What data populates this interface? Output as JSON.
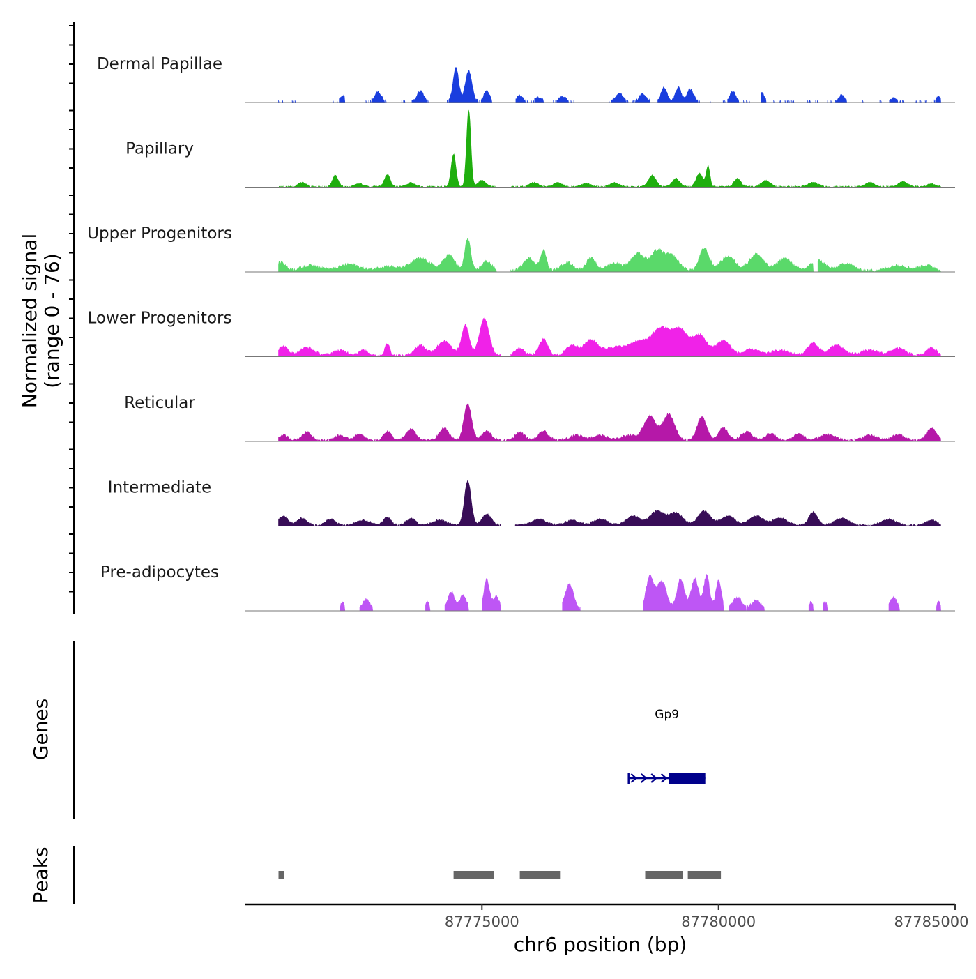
{
  "chart_data": {
    "type": "area",
    "title": "",
    "xlabel": "chr6 position (bp)",
    "ylabel": "Normalized signal",
    "ylabel_range": "(range 0 - 76)",
    "xlim": [
      87770000,
      87785000
    ],
    "ylim": [
      0,
      76
    ],
    "x_ticks": [
      {
        "value": 87775000,
        "label": "87775000"
      },
      {
        "value": 87780000,
        "label": "87780000"
      },
      {
        "value": 87785000,
        "label": "87785000"
      }
    ],
    "data_extent": [
      87770700,
      87784700
    ],
    "series": [
      {
        "name": "Dermal Papillae",
        "color": "#1a3ede",
        "noise": 2.2,
        "gate": 2.0,
        "segments": [
          [
            87770700,
            87771100
          ],
          [
            87771800,
            87772100
          ],
          [
            87772500,
            87773000
          ],
          [
            87773300,
            87773900
          ],
          [
            87774200,
            87775200
          ],
          [
            87775700,
            87776300
          ],
          [
            87776500,
            87777000
          ],
          [
            87777300,
            87777400
          ],
          [
            87777600,
            87778600
          ],
          [
            87778700,
            87779600
          ],
          [
            87779800,
            87780700
          ],
          [
            87780900,
            87781700
          ],
          [
            87781800,
            87782700
          ],
          [
            87782900,
            87783100
          ],
          [
            87783400,
            87784700
          ]
        ],
        "peaks": [
          [
            87771300,
            5,
            70
          ],
          [
            87772100,
            6,
            80
          ],
          [
            87772800,
            9,
            70
          ],
          [
            87773200,
            10,
            60
          ],
          [
            87773700,
            10,
            70
          ],
          [
            87774450,
            33,
            60
          ],
          [
            87774720,
            30,
            70
          ],
          [
            87775100,
            11,
            60
          ],
          [
            87775800,
            6,
            60
          ],
          [
            87776200,
            4,
            70
          ],
          [
            87776700,
            5,
            70
          ],
          [
            87777900,
            8,
            80
          ],
          [
            87778400,
            8,
            70
          ],
          [
            87778850,
            14,
            60
          ],
          [
            87779150,
            14,
            60
          ],
          [
            87779400,
            12,
            70
          ],
          [
            87780300,
            10,
            60
          ],
          [
            87780900,
            9,
            60
          ],
          [
            87782600,
            6,
            60
          ],
          [
            87783700,
            3,
            70
          ],
          [
            87784650,
            5,
            50
          ]
        ]
      },
      {
        "name": "Papillary",
        "color": "#1fae0e",
        "noise": 1.3,
        "gate": 0.5,
        "segments": [
          [
            87770700,
            87775300
          ],
          [
            87775600,
            87784700
          ]
        ],
        "peaks": [
          [
            87771200,
            4,
            80
          ],
          [
            87771900,
            11,
            60
          ],
          [
            87772400,
            3,
            90
          ],
          [
            87773000,
            12,
            60
          ],
          [
            87773500,
            4,
            80
          ],
          [
            87774400,
            32,
            50
          ],
          [
            87774720,
            76,
            45
          ],
          [
            87775000,
            6,
            80
          ],
          [
            87776100,
            4,
            90
          ],
          [
            87776600,
            4,
            90
          ],
          [
            87777200,
            3,
            90
          ],
          [
            87777800,
            4,
            90
          ],
          [
            87778600,
            11,
            80
          ],
          [
            87779100,
            8,
            80
          ],
          [
            87779600,
            13,
            70
          ],
          [
            87779780,
            20,
            40
          ],
          [
            87780400,
            8,
            70
          ],
          [
            87781000,
            6,
            90
          ],
          [
            87782000,
            4,
            100
          ],
          [
            87783200,
            4,
            90
          ],
          [
            87783900,
            5,
            90
          ],
          [
            87784500,
            3,
            80
          ]
        ]
      },
      {
        "name": "Upper Progenitors",
        "color": "#5ad96a",
        "noise": 3.0,
        "gate": 0.5,
        "segments": [
          [
            87770700,
            87775300
          ],
          [
            87775600,
            87782000
          ],
          [
            87782100,
            87784700
          ]
        ],
        "peaks": [
          [
            87770750,
            8,
            100
          ],
          [
            87771400,
            5,
            200
          ],
          [
            87772200,
            6,
            200
          ],
          [
            87773000,
            4,
            200
          ],
          [
            87773700,
            12,
            200
          ],
          [
            87774300,
            15,
            120
          ],
          [
            87774700,
            32,
            60
          ],
          [
            87775100,
            9,
            100
          ],
          [
            87776000,
            12,
            120
          ],
          [
            87776300,
            20,
            60
          ],
          [
            87776800,
            8,
            120
          ],
          [
            87777300,
            12,
            100
          ],
          [
            87777800,
            7,
            150
          ],
          [
            87778300,
            17,
            150
          ],
          [
            87778700,
            18,
            120
          ],
          [
            87779000,
            15,
            150
          ],
          [
            87779700,
            22,
            100
          ],
          [
            87780200,
            14,
            150
          ],
          [
            87780800,
            16,
            150
          ],
          [
            87781400,
            12,
            150
          ],
          [
            87782100,
            10,
            150
          ],
          [
            87782700,
            7,
            150
          ],
          [
            87783800,
            5,
            200
          ],
          [
            87784400,
            5,
            150
          ]
        ]
      },
      {
        "name": "Lower Progenitors",
        "color": "#f022e8",
        "noise": 2.5,
        "gate": 0.5,
        "segments": [
          [
            87770700,
            87775400
          ],
          [
            87775600,
            87784700
          ]
        ],
        "peaks": [
          [
            87770800,
            9,
            100
          ],
          [
            87771300,
            8,
            150
          ],
          [
            87772000,
            5,
            150
          ],
          [
            87772500,
            5,
            100
          ],
          [
            87773000,
            12,
            50
          ],
          [
            87773700,
            10,
            120
          ],
          [
            87774200,
            14,
            150
          ],
          [
            87774650,
            30,
            80
          ],
          [
            87775050,
            37,
            100
          ],
          [
            87775800,
            7,
            100
          ],
          [
            87776300,
            16,
            90
          ],
          [
            87776900,
            10,
            120
          ],
          [
            87777300,
            15,
            150
          ],
          [
            87777800,
            8,
            200
          ],
          [
            87778300,
            13,
            200
          ],
          [
            87778800,
            27,
            200
          ],
          [
            87779200,
            23,
            150
          ],
          [
            87779600,
            20,
            150
          ],
          [
            87780100,
            15,
            150
          ],
          [
            87780700,
            6,
            150
          ],
          [
            87781300,
            5,
            200
          ],
          [
            87782000,
            12,
            120
          ],
          [
            87782500,
            10,
            150
          ],
          [
            87783200,
            5,
            200
          ],
          [
            87783800,
            7,
            150
          ],
          [
            87784500,
            8,
            100
          ]
        ]
      },
      {
        "name": "Reticular",
        "color": "#b518a8",
        "noise": 2.3,
        "gate": 0.5,
        "segments": [
          [
            87770700,
            87784700
          ]
        ],
        "peaks": [
          [
            87770800,
            5,
            100
          ],
          [
            87771300,
            8,
            100
          ],
          [
            87772000,
            5,
            100
          ],
          [
            87772400,
            6,
            100
          ],
          [
            87773000,
            9,
            80
          ],
          [
            87773500,
            11,
            100
          ],
          [
            87774200,
            12,
            100
          ],
          [
            87774700,
            36,
            80
          ],
          [
            87775100,
            9,
            100
          ],
          [
            87775800,
            8,
            100
          ],
          [
            87776300,
            9,
            100
          ],
          [
            87777000,
            5,
            150
          ],
          [
            87777500,
            5,
            150
          ],
          [
            87778100,
            5,
            150
          ],
          [
            87778550,
            24,
            130
          ],
          [
            87778950,
            26,
            120
          ],
          [
            87779650,
            23,
            100
          ],
          [
            87780100,
            12,
            100
          ],
          [
            87780600,
            8,
            120
          ],
          [
            87781100,
            7,
            100
          ],
          [
            87781700,
            7,
            100
          ],
          [
            87782300,
            6,
            150
          ],
          [
            87783200,
            5,
            150
          ],
          [
            87783800,
            6,
            120
          ],
          [
            87784500,
            12,
            100
          ]
        ]
      },
      {
        "name": "Intermediate",
        "color": "#380d57",
        "noise": 1.8,
        "gate": 0.5,
        "segments": [
          [
            87770700,
            87775400
          ],
          [
            87775700,
            87784700
          ]
        ],
        "peaks": [
          [
            87770800,
            9,
            100
          ],
          [
            87771200,
            7,
            100
          ],
          [
            87771800,
            6,
            100
          ],
          [
            87772500,
            5,
            150
          ],
          [
            87773000,
            8,
            80
          ],
          [
            87773500,
            7,
            100
          ],
          [
            87774100,
            5,
            150
          ],
          [
            87774700,
            44,
            70
          ],
          [
            87775100,
            11,
            100
          ],
          [
            87776200,
            6,
            150
          ],
          [
            87776900,
            5,
            150
          ],
          [
            87777500,
            6,
            150
          ],
          [
            87778200,
            9,
            150
          ],
          [
            87778700,
            14,
            150
          ],
          [
            87779100,
            12,
            150
          ],
          [
            87779700,
            14,
            130
          ],
          [
            87780200,
            9,
            150
          ],
          [
            87780800,
            9,
            150
          ],
          [
            87781300,
            7,
            150
          ],
          [
            87782000,
            13,
            90
          ],
          [
            87782600,
            7,
            150
          ],
          [
            87783600,
            6,
            150
          ],
          [
            87784500,
            5,
            120
          ]
        ]
      },
      {
        "name": "Pre-adipocytes",
        "color": "#be56f5",
        "noise": 3.0,
        "gate": 3.5,
        "segments": [
          [
            87772000,
            87772100
          ],
          [
            87772400,
            87772700
          ],
          [
            87773800,
            87773900
          ],
          [
            87774200,
            87774800
          ],
          [
            87775000,
            87775400
          ],
          [
            87776700,
            87777100
          ],
          [
            87778400,
            87779900
          ],
          [
            87779900,
            87780100
          ],
          [
            87780200,
            87781000
          ],
          [
            87781900,
            87782000
          ],
          [
            87782200,
            87782300
          ],
          [
            87783600,
            87783900
          ],
          [
            87784600,
            87784700
          ]
        ],
        "peaks": [
          [
            87772050,
            7,
            40
          ],
          [
            87772550,
            10,
            80
          ],
          [
            87773850,
            7,
            40
          ],
          [
            87774350,
            18,
            70
          ],
          [
            87774600,
            14,
            70
          ],
          [
            87775100,
            30,
            60
          ],
          [
            87775300,
            14,
            60
          ],
          [
            87776850,
            25,
            90
          ],
          [
            87778550,
            32,
            80
          ],
          [
            87778800,
            28,
            100
          ],
          [
            87779200,
            30,
            80
          ],
          [
            87779500,
            30,
            80
          ],
          [
            87779750,
            34,
            60
          ],
          [
            87780000,
            28,
            60
          ],
          [
            87780400,
            12,
            100
          ],
          [
            87780800,
            9,
            100
          ],
          [
            87781950,
            7,
            40
          ],
          [
            87782250,
            7,
            40
          ],
          [
            87783700,
            12,
            70
          ],
          [
            87784650,
            7,
            40
          ]
        ]
      }
    ],
    "genes": [
      {
        "name": "Gp9",
        "start": 87778100,
        "end": 87779720,
        "thick_start": 87778950,
        "thick_end": 87779720,
        "strand": "+",
        "color": "#00008b"
      }
    ],
    "genes_label": "Genes",
    "peaks_label": "Peaks",
    "peak_color": "#666666",
    "peak_regions": [
      [
        87770700,
        87770820
      ],
      [
        87774400,
        87775250
      ],
      [
        87775800,
        87776650
      ],
      [
        87778450,
        87779250
      ],
      [
        87779350,
        87780050
      ]
    ]
  }
}
